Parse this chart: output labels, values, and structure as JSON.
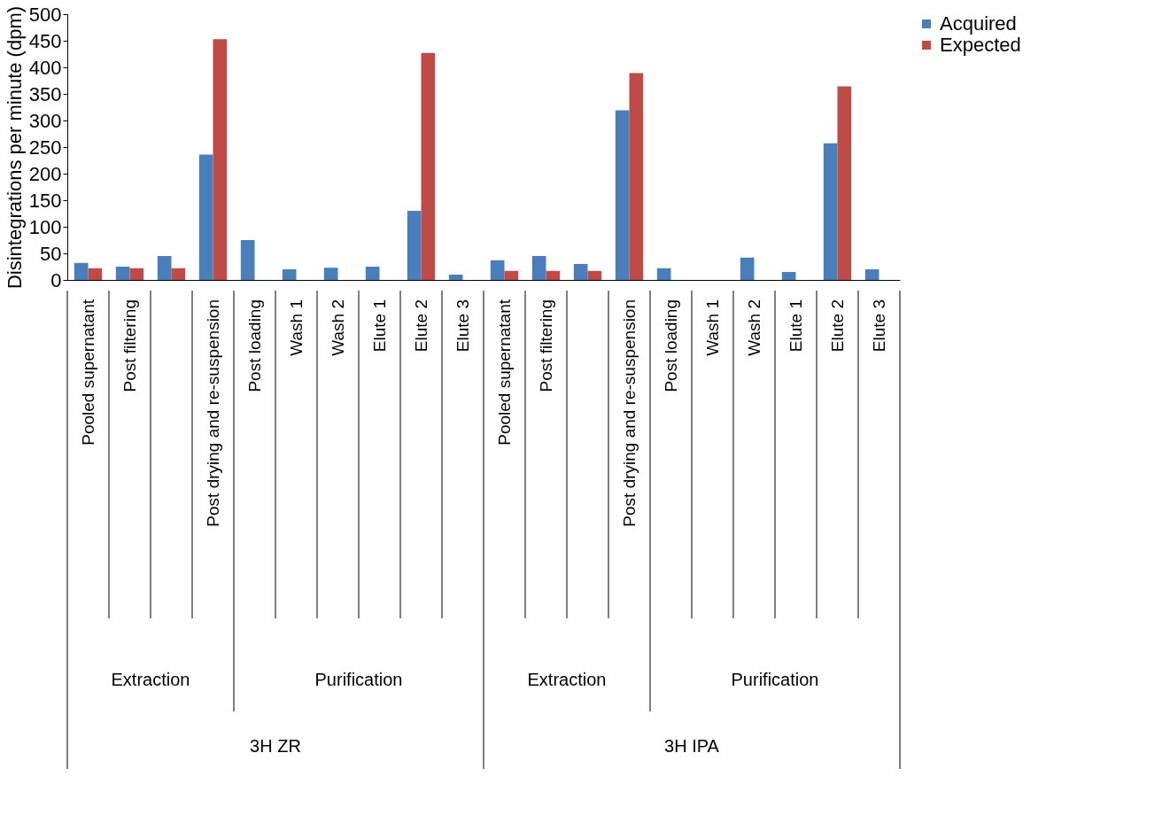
{
  "chart_data": {
    "type": "bar",
    "ylabel": "Disintegrations per minute (dpm)",
    "categories": [
      "Pooled supernatant",
      "Post filtering",
      null,
      "Post drying and re-suspension",
      "Post loading",
      "Wash 1",
      "Wash 2",
      "Elute 1",
      "Elute 2",
      "Elute 3",
      "Pooled supernatant",
      "Post filtering",
      null,
      "Post drying and re-suspension",
      "Post loading",
      "Wash 1",
      "Wash 2",
      "Elute 1",
      "Elute 2",
      "Elute 3"
    ],
    "series": [
      {
        "name": "Acquired",
        "color": "#4a7ebb",
        "values": [
          32,
          25,
          45,
          236,
          75,
          20,
          23,
          25,
          130,
          10,
          37,
          45,
          30,
          319,
          22,
          null,
          42,
          15,
          257,
          20
        ]
      },
      {
        "name": "Expected",
        "color": "#be4b48",
        "values": [
          22,
          22,
          22,
          453,
          null,
          null,
          null,
          null,
          427,
          null,
          17,
          17,
          17,
          389,
          null,
          null,
          null,
          null,
          364,
          null
        ]
      }
    ],
    "ylim": [
      0,
      500
    ],
    "yticks": [
      0,
      50,
      100,
      150,
      200,
      250,
      300,
      350,
      400,
      450,
      500
    ],
    "grid": false,
    "legend": "right",
    "annotations": [
      "Extraction",
      "Purification",
      "Extraction",
      "Purification",
      "3H ZR",
      "3H IPA"
    ]
  }
}
